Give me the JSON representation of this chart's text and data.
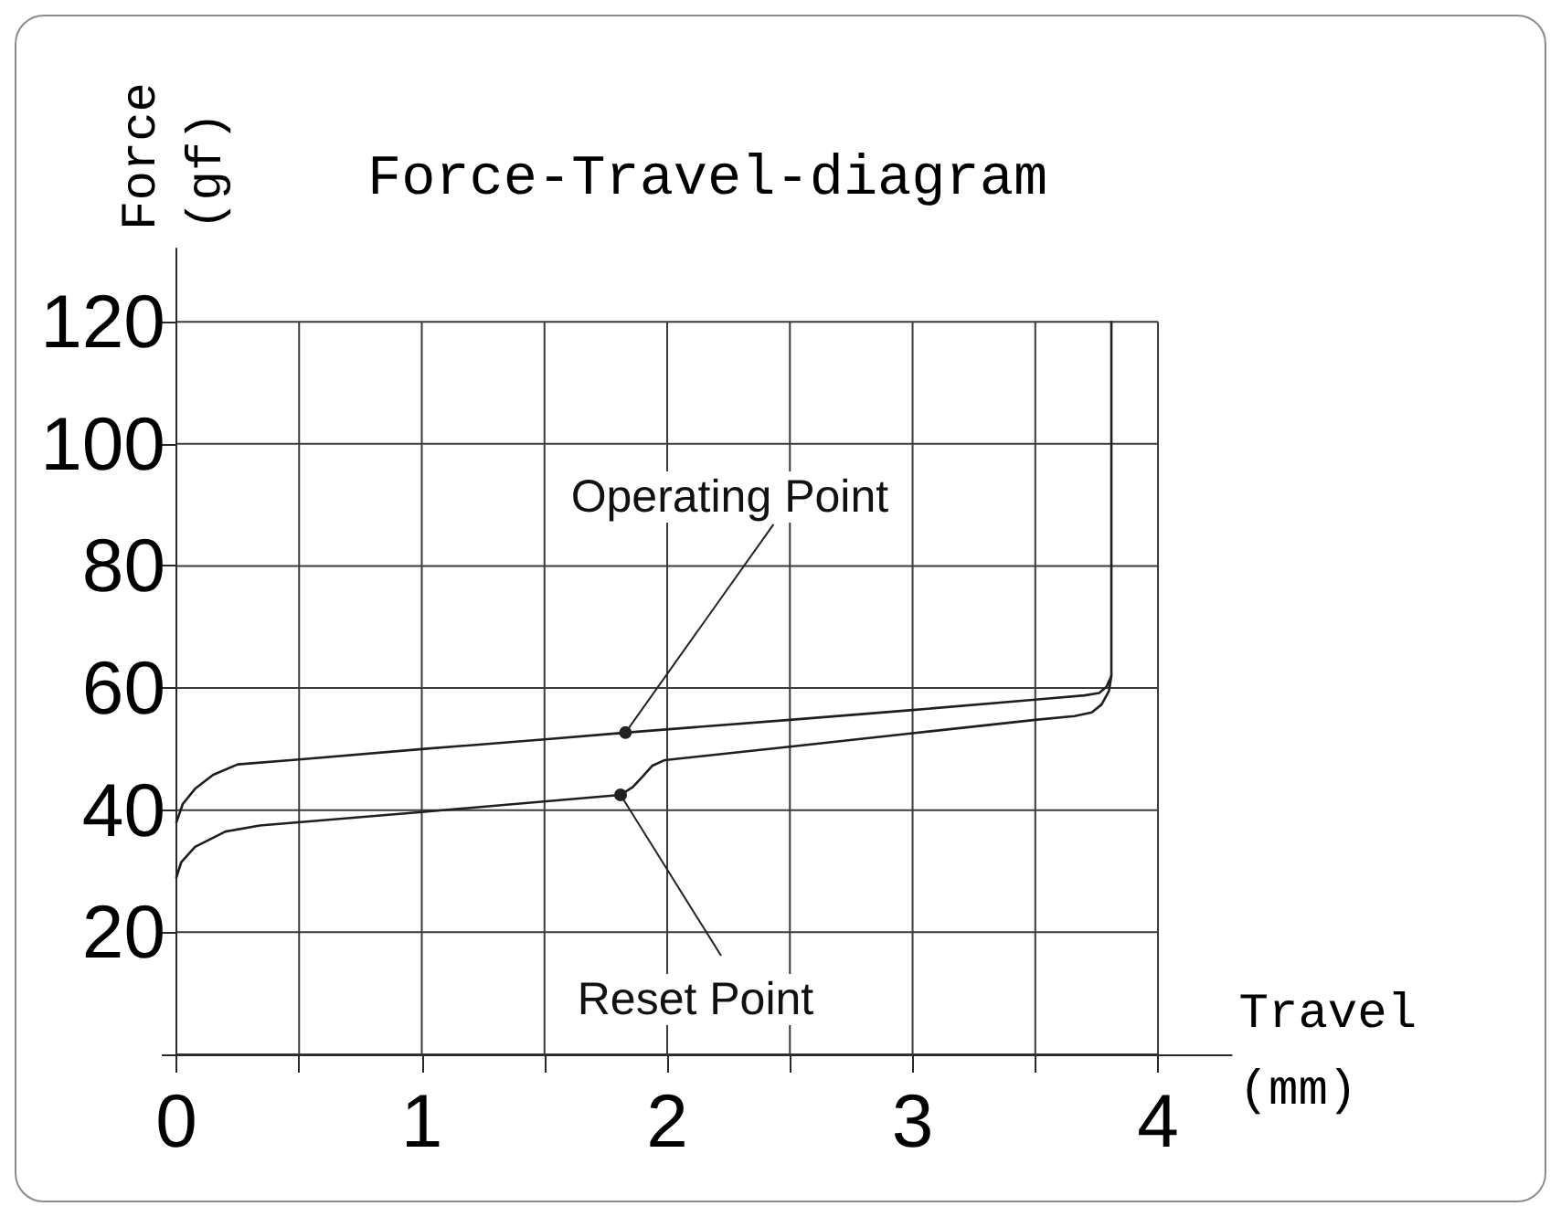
{
  "chart_data": {
    "type": "line",
    "title": "Force-Travel-diagram",
    "xlabel": "Travel\n(mm)",
    "ylabel": "Force\n(gf)",
    "xlim": [
      0,
      4.3
    ],
    "ylim": [
      0,
      132
    ],
    "xticks": [
      0,
      {
        "value": 0.5,
        "label": null
      },
      1,
      {
        "value": 1.5,
        "label": null
      },
      2,
      {
        "value": 2.5,
        "label": null
      },
      3,
      {
        "value": 3.5,
        "label": null
      },
      4
    ],
    "yticks": [
      {
        "value": 0,
        "label": null
      },
      20,
      40,
      60,
      80,
      100,
      120
    ],
    "grid": true,
    "marker": "none",
    "line_style": "solid",
    "series": [
      {
        "color": "#1e1e1e",
        "x": [
          0,
          0.026,
          0.076,
          0.15,
          0.25,
          0.5,
          1.0,
          1.5,
          1.83,
          2.5,
          3.0,
          3.5,
          3.7,
          3.76,
          3.79,
          3.81,
          3.81
        ],
        "values": [
          38.0,
          41.0,
          43.5,
          45.8,
          47.5,
          48.3,
          50.0,
          51.6,
          52.7,
          54.8,
          56.4,
          58.1,
          58.8,
          59.2,
          60.2,
          62.0,
          120
        ]
      },
      {
        "color": "#1e1e1e",
        "x": [
          0,
          0.02,
          0.076,
          0.2,
          0.34,
          1.0,
          1.81,
          1.86,
          1.9,
          1.94,
          1.99,
          2.5,
          3.0,
          3.5,
          3.66,
          3.73,
          3.77,
          3.8,
          3.81
        ],
        "values": [
          29.0,
          31.5,
          34.0,
          36.5,
          37.5,
          39.7,
          42.5,
          43.8,
          45.5,
          47.3,
          48.2,
          50.4,
          52.6,
          54.8,
          55.4,
          56.0,
          57.3,
          59.5,
          62.0
        ]
      }
    ],
    "annotations": [
      {
        "text": "Operating Point",
        "x": 1.83,
        "y": 52.7
      },
      {
        "text": "Reset Point",
        "x": 1.81,
        "y": 42.5
      }
    ]
  }
}
